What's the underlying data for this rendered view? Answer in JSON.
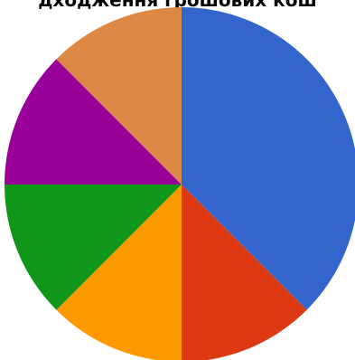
{
  "chart_data": {
    "type": "pie",
    "title": "дходження грошових кош",
    "start_angle_deg": 0,
    "direction": "clockwise",
    "slices": [
      {
        "value": 37.5,
        "color": "#3366CC"
      },
      {
        "value": 12.5,
        "color": "#DC3912"
      },
      {
        "value": 12.5,
        "color": "#FF9900"
      },
      {
        "value": 12.5,
        "color": "#109618"
      },
      {
        "value": 12.5,
        "color": "#990099"
      },
      {
        "value": 12.5,
        "color": "#DD8844"
      }
    ]
  }
}
